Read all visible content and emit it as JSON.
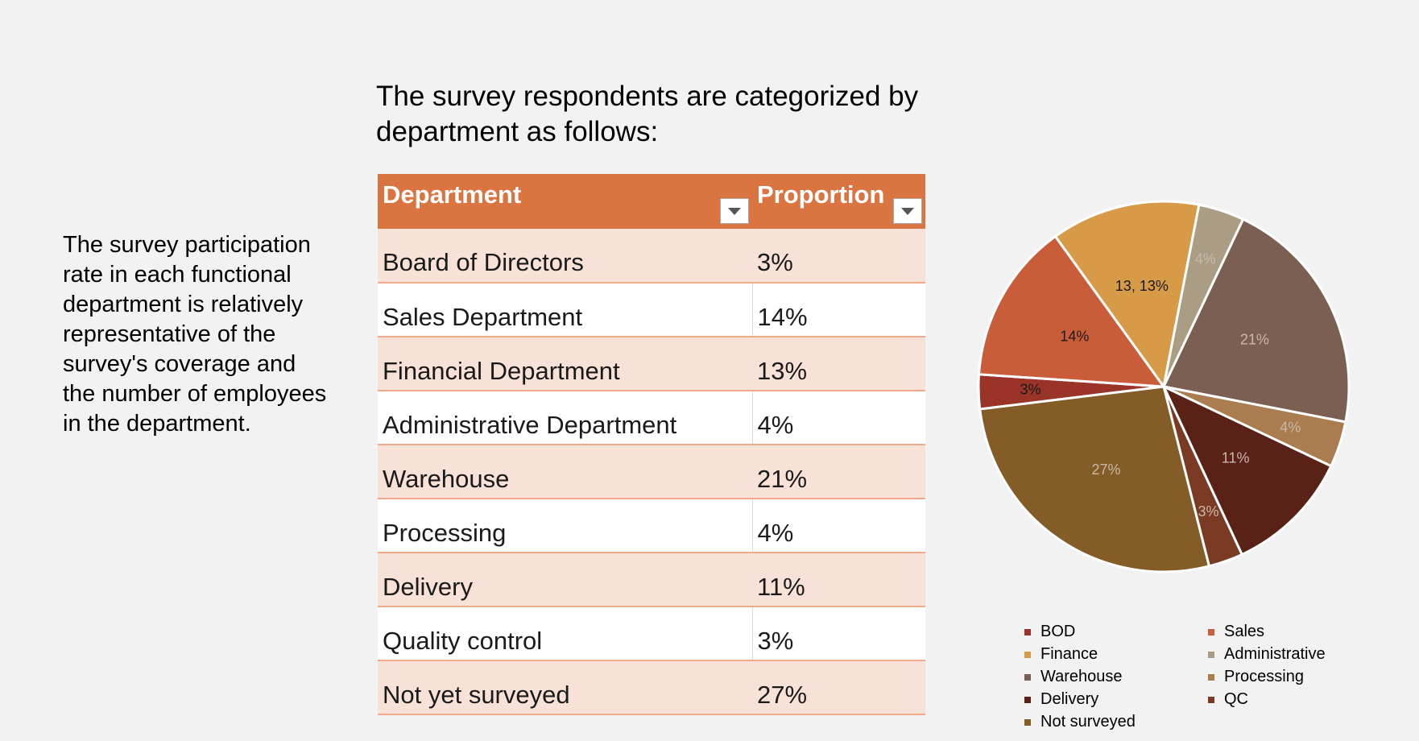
{
  "side_text": "The survey participation rate in each functional department is relatively representative of the survey's coverage and the number of employees in the department.",
  "heading": "The survey respondents are categorized by department as follows:",
  "table": {
    "headers": [
      "Department",
      "Proportion"
    ],
    "rows": [
      {
        "department": "Board of Directors",
        "proportion": "3%"
      },
      {
        "department": "Sales Department",
        "proportion": "14%"
      },
      {
        "department": "Financial Department",
        "proportion": "13%"
      },
      {
        "department": "Administrative Department",
        "proportion": "4%"
      },
      {
        "department": "Warehouse",
        "proportion": "21%"
      },
      {
        "department": "Processing",
        "proportion": "4%"
      },
      {
        "department": "Delivery",
        "proportion": "11%"
      },
      {
        "department": "Quality control",
        "proportion": "3%"
      },
      {
        "department": "Not yet surveyed",
        "proportion": "27%"
      }
    ]
  },
  "chart_data": {
    "type": "pie",
    "legend_position": "bottom",
    "slices": [
      {
        "name": "BOD",
        "value": 3,
        "label": "3%",
        "color": "#9a3429"
      },
      {
        "name": "Sales",
        "value": 14,
        "label": "14%",
        "color": "#c95d3a"
      },
      {
        "name": "Finance",
        "value": 13,
        "label": "13, 13%",
        "color": "#d79b48"
      },
      {
        "name": "Administrative",
        "value": 4,
        "label": "4%",
        "color": "#ab9d84"
      },
      {
        "name": "Warehouse",
        "value": 21,
        "label": "21%",
        "color": "#7b5f52"
      },
      {
        "name": "Processing",
        "value": 4,
        "label": "4%",
        "color": "#aa7c50"
      },
      {
        "name": "Delivery",
        "value": 11,
        "label": "11%",
        "color": "#5a2117"
      },
      {
        "name": "QC",
        "value": 3,
        "label": "3%",
        "color": "#7a3a24"
      },
      {
        "name": "Not surveyed",
        "value": 27,
        "label": "27%",
        "color": "#835c27"
      }
    ]
  }
}
